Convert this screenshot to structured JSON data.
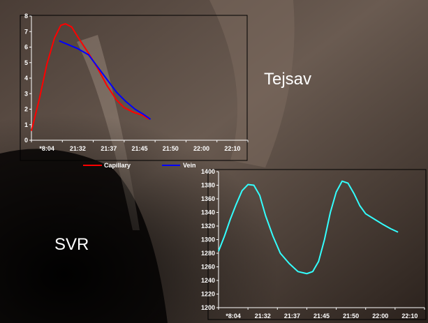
{
  "labels": {
    "top_right": "Tejsav",
    "bottom_left": "SVR"
  },
  "colors": {
    "capillary": "#ff0000",
    "vein": "#0000ff",
    "svr": "#33ffff",
    "text": "#ffffff",
    "axis": "#ffffff",
    "frame": "#000000"
  },
  "chart_data": [
    {
      "type": "line",
      "categories": [
        "*8:04",
        "21:32",
        "21:37",
        "21:45",
        "21:50",
        "22:00",
        "22:10"
      ],
      "ylim": [
        0,
        8
      ],
      "yticks": [
        "0",
        "1",
        "2",
        "3",
        "4",
        "5",
        "6",
        "7",
        "8"
      ],
      "legend": "bottom",
      "series": [
        {
          "name": "Capillary",
          "color": "#ff0000",
          "points": [
            [
              0,
              0.6
            ],
            [
              0.25,
              2.6
            ],
            [
              0.5,
              4.9
            ],
            [
              0.75,
              6.6
            ],
            [
              0.95,
              7.4
            ],
            [
              1.1,
              7.5
            ],
            [
              1.3,
              7.3
            ],
            [
              1.55,
              6.5
            ],
            [
              1.85,
              5.6
            ],
            [
              2.15,
              4.6
            ],
            [
              2.45,
              3.5
            ],
            [
              2.75,
              2.6
            ],
            [
              3.0,
              2.1
            ],
            [
              3.3,
              1.8
            ],
            [
              3.6,
              1.6
            ],
            [
              3.8,
              1.35
            ]
          ]
        },
        {
          "name": "Vein",
          "color": "#0000ff",
          "points": [
            [
              0.9,
              6.4
            ],
            [
              1.2,
              6.15
            ],
            [
              1.5,
              5.9
            ],
            [
              1.85,
              5.5
            ],
            [
              2.15,
              4.7
            ],
            [
              2.45,
              3.9
            ],
            [
              2.75,
              3.1
            ],
            [
              3.05,
              2.5
            ],
            [
              3.35,
              2.0
            ],
            [
              3.6,
              1.7
            ],
            [
              3.85,
              1.35
            ]
          ]
        }
      ]
    },
    {
      "type": "line",
      "categories": [
        "*8:04",
        "21:32",
        "21:37",
        "21:45",
        "21:50",
        "22:00",
        "22:10"
      ],
      "ylim": [
        1200,
        1400
      ],
      "yticks": [
        "1200",
        "1220",
        "1240",
        "1260",
        "1280",
        "1300",
        "1320",
        "1340",
        "1360",
        "1380",
        "1400"
      ],
      "series": [
        {
          "color": "#33ffff",
          "points": [
            [
              0,
              1283
            ],
            [
              0.2,
              1305
            ],
            [
              0.4,
              1330
            ],
            [
              0.6,
              1352
            ],
            [
              0.8,
              1372
            ],
            [
              1.0,
              1381
            ],
            [
              1.2,
              1380
            ],
            [
              1.4,
              1365
            ],
            [
              1.6,
              1335
            ],
            [
              1.85,
              1305
            ],
            [
              2.1,
              1280
            ],
            [
              2.4,
              1265
            ],
            [
              2.7,
              1253
            ],
            [
              3.0,
              1250
            ],
            [
              3.2,
              1253
            ],
            [
              3.4,
              1268
            ],
            [
              3.6,
              1300
            ],
            [
              3.8,
              1340
            ],
            [
              4.0,
              1370
            ],
            [
              4.2,
              1386
            ],
            [
              4.4,
              1383
            ],
            [
              4.6,
              1368
            ],
            [
              4.8,
              1350
            ],
            [
              5.0,
              1338
            ],
            [
              5.3,
              1330
            ],
            [
              5.6,
              1322
            ],
            [
              5.85,
              1316
            ],
            [
              6.1,
              1311
            ]
          ]
        }
      ]
    }
  ]
}
